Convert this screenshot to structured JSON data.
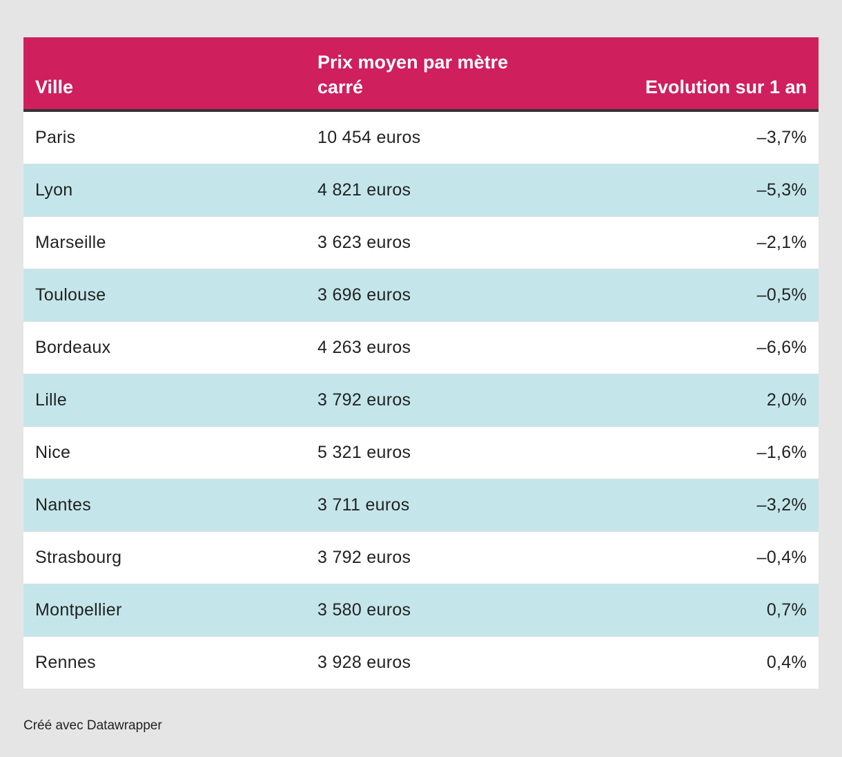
{
  "colors": {
    "header_bg": "#cf1f5c",
    "alt_row_bg": "#c4e6ea",
    "page_bg": "#e5e5e5"
  },
  "chart_data": {
    "type": "table",
    "columns": [
      "Ville",
      "Prix moyen par mètre carré",
      "Evolution sur 1 an"
    ],
    "rows": [
      [
        "Paris",
        "10 454 euros",
        "–3,7%"
      ],
      [
        "Lyon",
        "4 821 euros",
        "–5,3%"
      ],
      [
        "Marseille",
        "3 623 euros",
        "–2,1%"
      ],
      [
        "Toulouse",
        "3 696 euros",
        "–0,5%"
      ],
      [
        "Bordeaux",
        "4 263 euros",
        "–6,6%"
      ],
      [
        "Lille",
        "3 792 euros",
        "2,0%"
      ],
      [
        "Nice",
        "5 321 euros",
        "–1,6%"
      ],
      [
        "Nantes",
        "3 711 euros",
        "–3,2%"
      ],
      [
        "Strasbourg",
        "3 792 euros",
        "–0,4%"
      ],
      [
        "Montpellier",
        "3 580 euros",
        "0,7%"
      ],
      [
        "Rennes",
        "3 928 euros",
        "0,4%"
      ]
    ]
  },
  "footer": {
    "credit": "Créé avec Datawrapper"
  }
}
